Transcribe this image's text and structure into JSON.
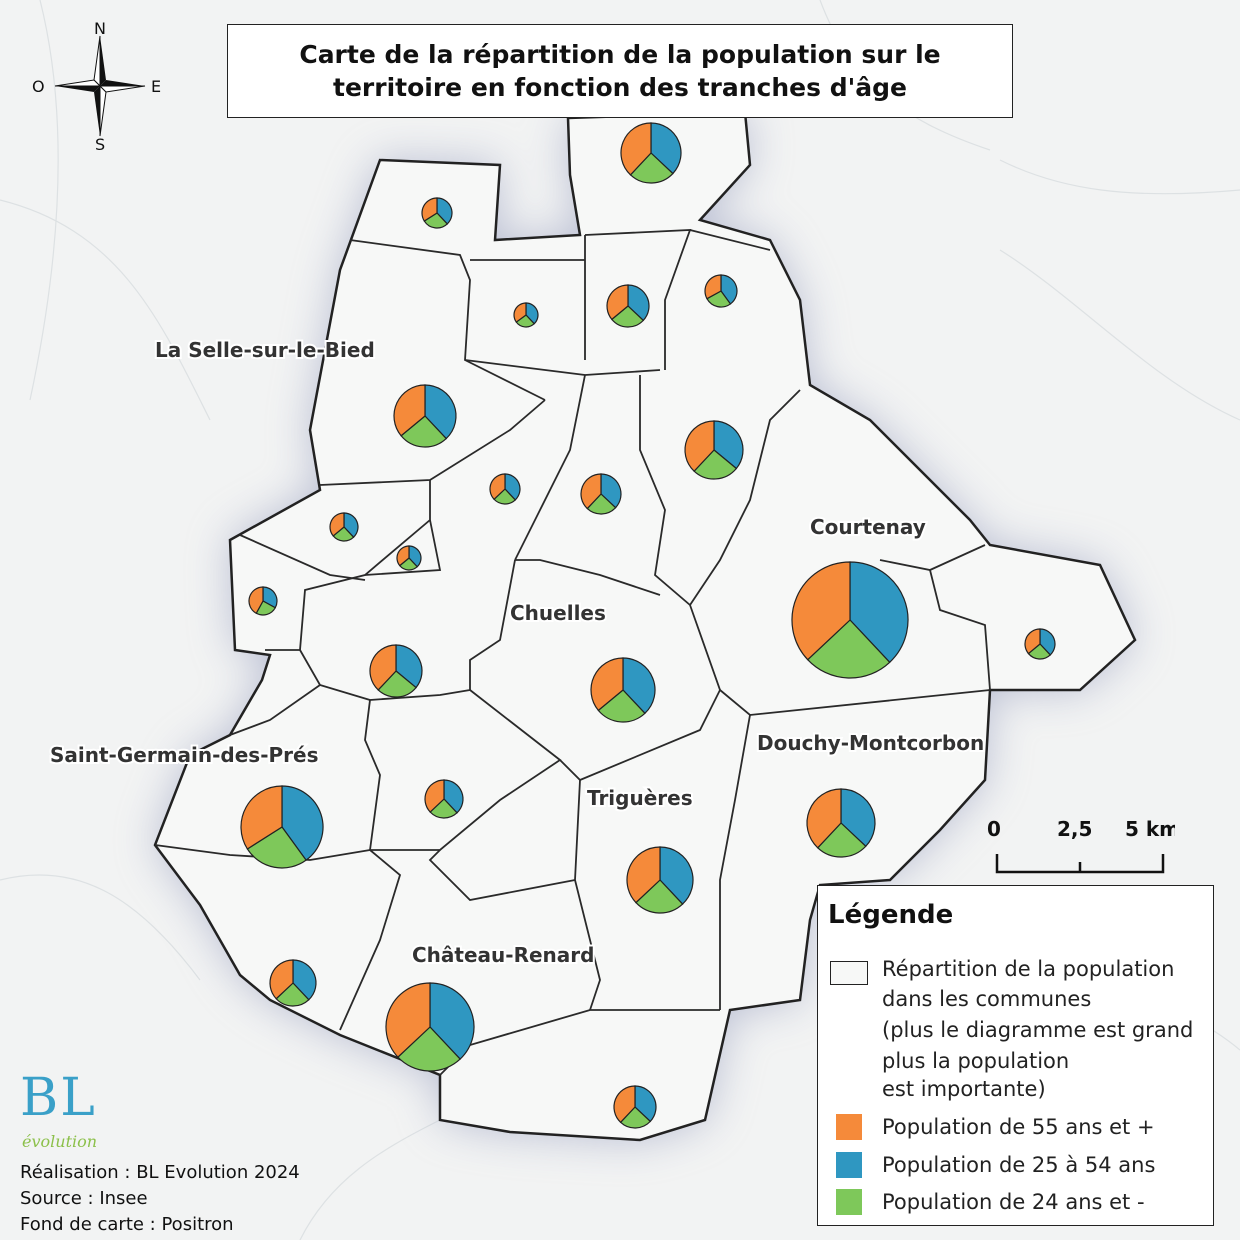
{
  "title": {
    "line1": "Carte de la répartition de la population sur le",
    "line2": "territoire en fonction des tranches d'âge"
  },
  "compass": {
    "n": "N",
    "s": "S",
    "e": "E",
    "o": "O"
  },
  "place_labels": [
    "La Selle-sur-le-Bied",
    "Courtenay",
    "Chuelles",
    "Saint-Germain-des-Prés",
    "Douchy-Montcorbon",
    "Triguères",
    "Château-Renard"
  ],
  "scale": {
    "l0": "0",
    "l1": "2,5",
    "l2": "5 km"
  },
  "legend": {
    "title": "Légende",
    "commune_line1": "Répartition de la population",
    "commune_line2": "dans les communes",
    "commune_line3": "(plus le diagramme est grand",
    "commune_line4": "plus la population",
    "commune_line5": "est importante)",
    "items": [
      {
        "label": "Population de 55 ans et +",
        "color": "#f58a3a"
      },
      {
        "label": "Population de 25 à 54 ans",
        "color": "#2f97c1"
      },
      {
        "label": "Population de 24 ans et -",
        "color": "#7ec85a"
      }
    ]
  },
  "credits": {
    "line1": "Réalisation : BL Evolution 2024",
    "line2": "Source : Insee",
    "line3": "Fond de carte : Positron"
  },
  "logo": {
    "main": "BL",
    "sub": "évolution"
  },
  "colors": {
    "age55": "#f58a3a",
    "age25": "#2f97c1",
    "age24": "#7ec85a",
    "commune_fill": "#f7f8f7",
    "border": "#222222"
  },
  "pie_charts": [
    {
      "share_55": 0.38,
      "share_25_54": 0.37,
      "share_24": 0.25
    },
    {
      "share_55": 0.34,
      "share_25_54": 0.38,
      "share_24": 0.28
    },
    {
      "share_55": 0.36,
      "share_25_54": 0.37,
      "share_24": 0.27
    },
    {
      "share_55": 0.33,
      "share_25_54": 0.4,
      "share_24": 0.27
    },
    {
      "share_55": 0.35,
      "share_25_54": 0.38,
      "share_24": 0.27
    },
    {
      "share_55": 0.36,
      "share_25_54": 0.38,
      "share_24": 0.26
    },
    {
      "share_55": 0.38,
      "share_25_54": 0.36,
      "share_24": 0.26
    },
    {
      "share_55": 0.37,
      "share_25_54": 0.38,
      "share_24": 0.25
    },
    {
      "share_55": 0.38,
      "share_25_54": 0.37,
      "share_24": 0.25
    },
    {
      "share_55": 0.36,
      "share_25_54": 0.38,
      "share_24": 0.26
    },
    {
      "share_55": 0.36,
      "share_25_54": 0.38,
      "share_24": 0.26
    },
    {
      "share_55": 0.42,
      "share_25_54": 0.33,
      "share_24": 0.25
    },
    {
      "share_55": 0.38,
      "share_25_54": 0.36,
      "share_24": 0.26
    },
    {
      "share_55": 0.36,
      "share_25_54": 0.38,
      "share_24": 0.26
    },
    {
      "share_55": 0.37,
      "share_25_54": 0.38,
      "share_24": 0.25
    },
    {
      "share_55": 0.36,
      "share_25_54": 0.38,
      "share_24": 0.26
    },
    {
      "share_55": 0.37,
      "share_25_54": 0.38,
      "share_24": 0.25
    },
    {
      "share_55": 0.34,
      "share_25_54": 0.4,
      "share_24": 0.26
    },
    {
      "share_55": 0.38,
      "share_25_54": 0.37,
      "share_24": 0.25
    },
    {
      "share_55": 0.37,
      "share_25_54": 0.38,
      "share_24": 0.25
    },
    {
      "share_55": 0.37,
      "share_25_54": 0.38,
      "share_24": 0.25
    },
    {
      "share_55": 0.37,
      "share_25_54": 0.38,
      "share_24": 0.25
    },
    {
      "share_55": 0.38,
      "share_25_54": 0.37,
      "share_24": 0.25
    }
  ]
}
